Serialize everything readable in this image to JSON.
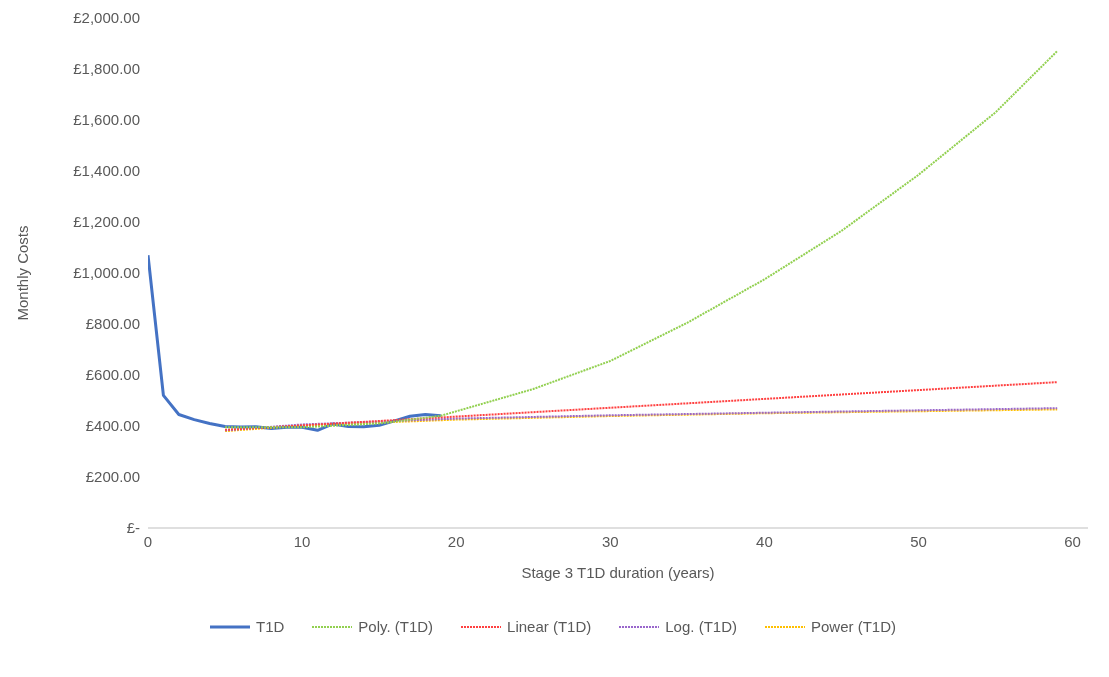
{
  "chart_data": {
    "type": "line",
    "xlabel": "Stage 3 T1D duration (years)",
    "ylabel": "Monthly Costs",
    "xlim": [
      0,
      61
    ],
    "xticks": [
      0,
      10,
      20,
      30,
      40,
      50,
      60
    ],
    "ylim": [
      0,
      2000
    ],
    "yticks": [
      {
        "value": 0,
        "label": "£-"
      },
      {
        "value": 200,
        "label": "£200.00"
      },
      {
        "value": 400,
        "label": "£400.00"
      },
      {
        "value": 600,
        "label": "£600.00"
      },
      {
        "value": 800,
        "label": "£800.00"
      },
      {
        "value": 1000,
        "label": "£1,000.00"
      },
      {
        "value": 1200,
        "label": "£1,200.00"
      },
      {
        "value": 1400,
        "label": "£1,400.00"
      },
      {
        "value": 1600,
        "label": "£1,600.00"
      },
      {
        "value": 1800,
        "label": "£1,800.00"
      },
      {
        "value": 2000,
        "label": "£2,000.00"
      }
    ],
    "legend": "bottom",
    "marker": "none",
    "series": [
      {
        "name": "T1D",
        "color": "#4472c4",
        "line_style": "solid",
        "x": [
          0,
          1,
          2,
          3,
          4,
          5,
          6,
          7,
          8,
          9,
          10,
          11,
          12,
          13,
          14,
          15,
          16,
          17,
          18,
          19
        ],
        "values": [
          1070,
          520,
          445,
          425,
          410,
          398,
          396,
          397,
          390,
          395,
          395,
          383,
          408,
          398,
          397,
          403,
          420,
          438,
          445,
          440
        ]
      },
      {
        "name": "Poly. (T1D)",
        "color": "#92d050",
        "line_style": "dotted",
        "x": [
          5,
          10,
          15,
          19,
          25,
          30,
          35,
          40,
          45,
          50,
          55,
          59
        ],
        "values": [
          395,
          395,
          410,
          440,
          545,
          655,
          805,
          975,
          1165,
          1385,
          1630,
          1870
        ]
      },
      {
        "name": "Linear (T1D)",
        "color": "#ff4040",
        "line_style": "dotted",
        "x": [
          5,
          59
        ],
        "values": [
          385,
          572
        ]
      },
      {
        "name": "Log. (T1D)",
        "color": "#9966cc",
        "line_style": "dotted",
        "x": [
          5,
          10,
          20,
          30,
          40,
          59
        ],
        "values": [
          383,
          406,
          429,
          442,
          452,
          470
        ]
      },
      {
        "name": "Power (T1D)",
        "color": "#ffc000",
        "line_style": "dotted",
        "x": [
          5,
          10,
          20,
          30,
          40,
          59
        ],
        "values": [
          380,
          402,
          425,
          439,
          450,
          465
        ]
      }
    ]
  }
}
